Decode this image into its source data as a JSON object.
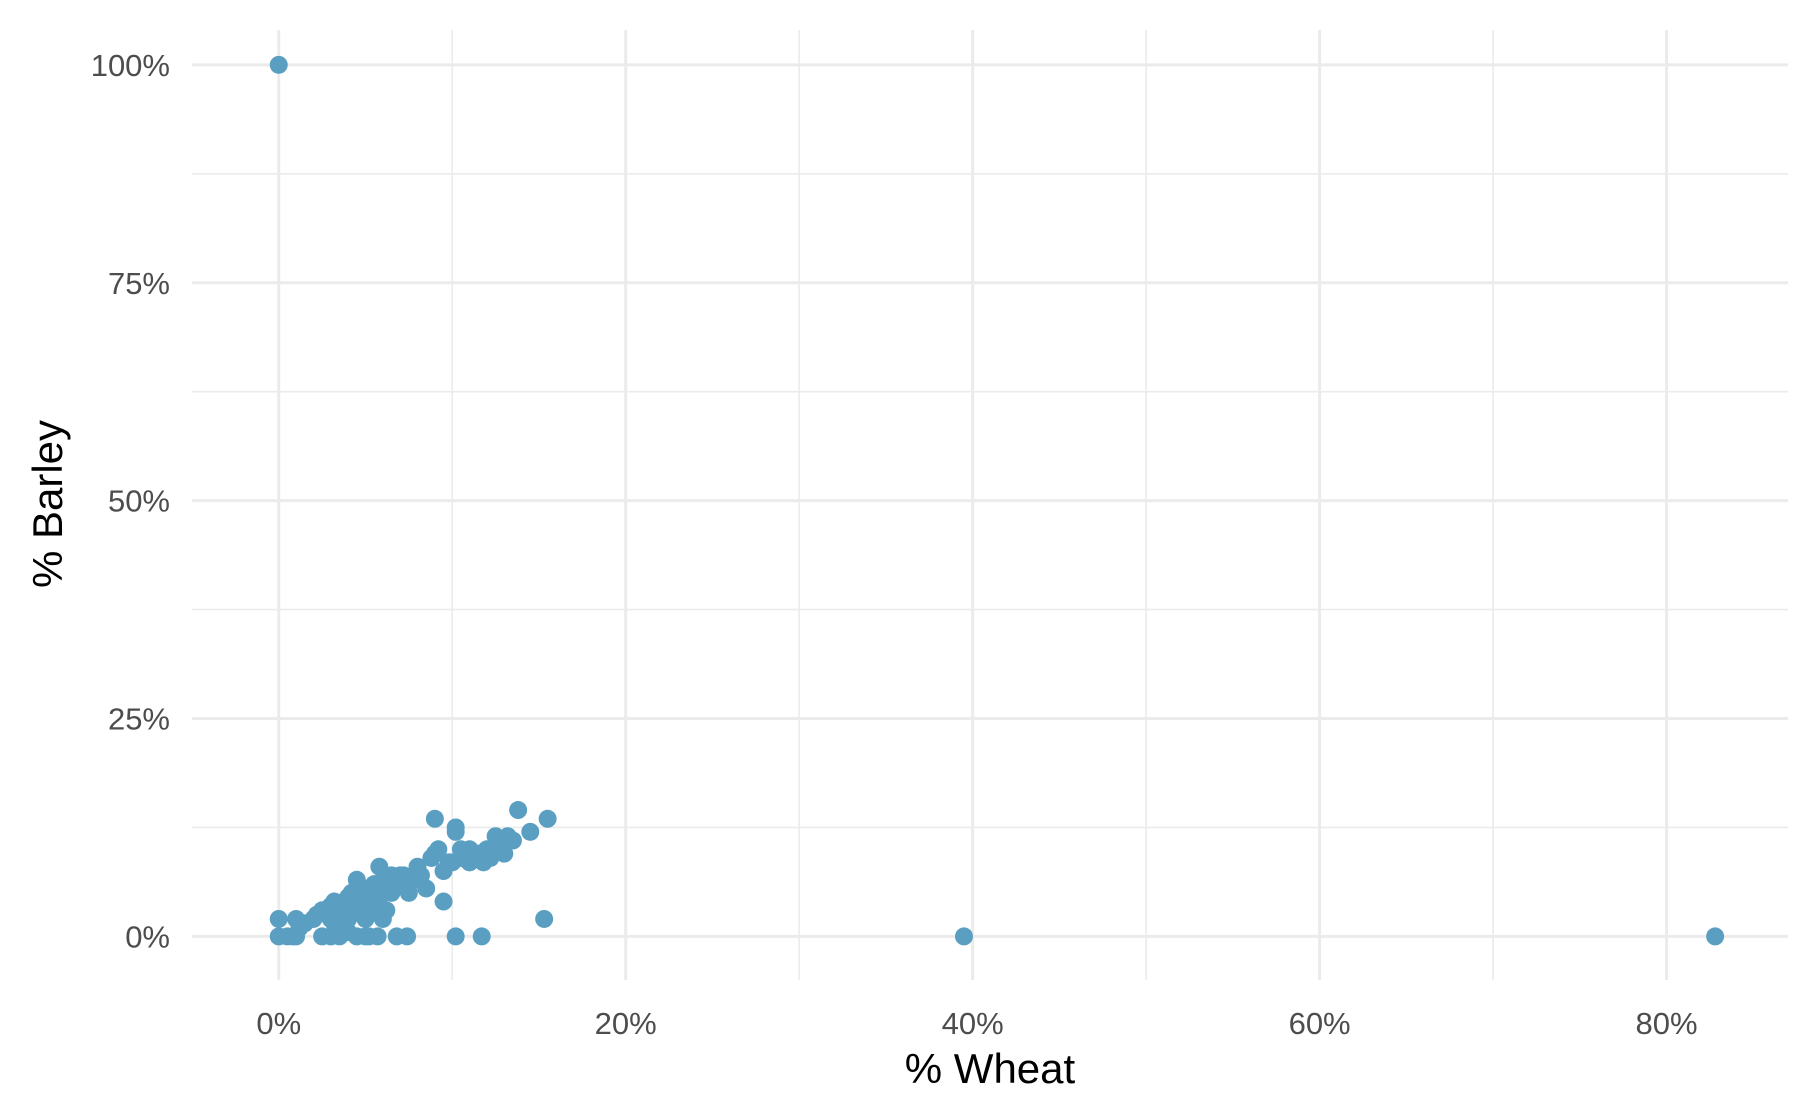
{
  "chart_data": {
    "type": "scatter",
    "title": "",
    "xlabel": "% Wheat",
    "ylabel": "% Barley",
    "xlim": [
      -5,
      87
    ],
    "ylim": [
      -5,
      104
    ],
    "x_ticks": [
      0,
      20,
      40,
      60,
      80
    ],
    "x_tick_labels": [
      "0%",
      "20%",
      "40%",
      "60%",
      "80%"
    ],
    "y_ticks": [
      0,
      25,
      50,
      75,
      100
    ],
    "y_tick_labels": [
      "0%",
      "25%",
      "50%",
      "75%",
      "100%"
    ],
    "x_minor_ticks": [
      10,
      30,
      50,
      70
    ],
    "y_minor_ticks": [
      12.5,
      37.5,
      62.5,
      87.5
    ],
    "grid": true,
    "legend": "none",
    "point_color": "#5a9fc1",
    "grid_color": "#ebebeb",
    "series": [
      {
        "x": [
          0,
          0,
          0,
          0.5,
          0.8,
          1,
          1,
          1.2,
          1.5,
          2,
          2.2,
          2.5,
          2.5,
          2.8,
          3,
          3,
          3,
          3.2,
          3.5,
          3.5,
          3.8,
          4,
          4,
          4,
          4.2,
          4.5,
          4.5,
          4.5,
          4.8,
          5,
          5,
          5,
          5.2,
          5.5,
          5.5,
          5.8,
          5.8,
          6,
          6,
          6,
          6.2,
          6.5,
          6.5,
          6.8,
          7,
          7,
          7.2,
          7.5,
          7.8,
          8,
          8,
          8.2,
          8.5,
          8.8,
          9,
          9,
          9.2,
          9.5,
          9.5,
          9.8,
          10,
          10.2,
          10.2,
          10.5,
          10.5,
          10.8,
          11,
          11,
          11.5,
          11.8,
          12,
          12.2,
          12.5,
          12.8,
          13,
          13.2,
          13.5,
          13.8,
          14.5,
          15.3,
          15.5,
          2.8,
          3.2,
          4.3,
          5.2,
          5.7,
          6.8,
          7.4,
          10.2,
          11.7,
          39.5,
          82.8
        ],
        "y": [
          100,
          2,
          0,
          0,
          0,
          2,
          0,
          1,
          1.5,
          2,
          2.5,
          0,
          3,
          3,
          0,
          2,
          3.5,
          4,
          3,
          0,
          4,
          4.5,
          2,
          0.5,
          5,
          6.5,
          3.5,
          0,
          5,
          4,
          2,
          0,
          5.5,
          6,
          3,
          8,
          4.5,
          6.5,
          5,
          2,
          3,
          5,
          7,
          6,
          6.5,
          7,
          7,
          5,
          6.5,
          7.5,
          8,
          7,
          5.5,
          9,
          13.5,
          9.5,
          10,
          7.5,
          4,
          8.5,
          8.5,
          12,
          12.5,
          9,
          10,
          9.5,
          10,
          8.5,
          9.5,
          8.5,
          10,
          9,
          11.5,
          10,
          9.5,
          11.5,
          11,
          14.5,
          12,
          2,
          13.5,
          2.5,
          1.5,
          3,
          0,
          0,
          0,
          0,
          0,
          0,
          0,
          0
        ]
      }
    ]
  }
}
